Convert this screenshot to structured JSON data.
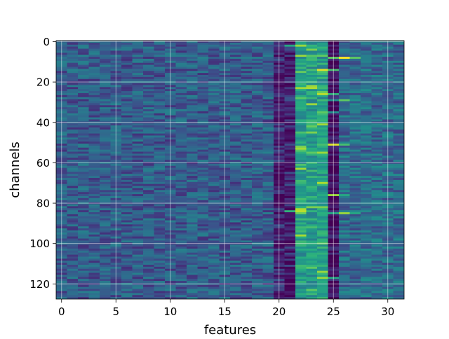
{
  "chart_data": {
    "type": "heatmap",
    "title": "",
    "xlabel": "features",
    "ylabel": "channels",
    "x_range": [
      -0.5,
      31.5
    ],
    "y_range": [
      127.5,
      -0.5
    ],
    "y_inverted": true,
    "x_ticks": [
      0,
      5,
      10,
      15,
      20,
      25,
      30
    ],
    "y_ticks": [
      0,
      20,
      40,
      60,
      80,
      100,
      120
    ],
    "grid": true,
    "colormap": "viridis",
    "n_rows": 128,
    "n_cols": 32,
    "features": [
      {
        "label": "0-19",
        "from": 0,
        "to": 19,
        "typical_intensity": 0.3
      },
      {
        "label": "20-21",
        "from": 20,
        "to": 21,
        "typical_intensity": 0.12
      },
      {
        "label": "22-24",
        "from": 22,
        "to": 24,
        "typical_intensity": 0.55
      },
      {
        "label": "25",
        "from": 25,
        "to": 25,
        "typical_intensity": 0.05
      },
      {
        "label": "26-31",
        "from": 26,
        "to": 31,
        "typical_intensity": 0.35
      }
    ],
    "hotspots": [
      {
        "channel": 2,
        "feature": 22,
        "value": 0.85
      },
      {
        "channel": 4,
        "feature": 23,
        "value": 0.8
      },
      {
        "channel": 8,
        "feature": 26,
        "value": 1.0
      },
      {
        "channel": 14,
        "feature": 24,
        "value": 0.95
      },
      {
        "channel": 22,
        "feature": 23,
        "value": 0.85
      },
      {
        "channel": 26,
        "feature": 24,
        "value": 0.9
      },
      {
        "channel": 29,
        "feature": 26,
        "value": 0.75
      },
      {
        "channel": 31,
        "feature": 23,
        "value": 0.85
      },
      {
        "channel": 35,
        "feature": 24,
        "value": 0.75
      },
      {
        "channel": 45,
        "feature": 23,
        "value": 0.8
      },
      {
        "channel": 51,
        "feature": 25,
        "value": 0.95
      },
      {
        "channel": 55,
        "feature": 23,
        "value": 0.75
      },
      {
        "channel": 64,
        "feature": 23,
        "value": 0.7
      },
      {
        "channel": 76,
        "feature": 25,
        "value": 0.85
      },
      {
        "channel": 82,
        "feature": 23,
        "value": 0.8
      },
      {
        "channel": 84,
        "feature": 22,
        "value": 0.9
      },
      {
        "channel": 85,
        "feature": 26,
        "value": 0.85
      },
      {
        "channel": 92,
        "feature": 23,
        "value": 0.7
      },
      {
        "channel": 112,
        "feature": 23,
        "value": 0.75
      },
      {
        "channel": 117,
        "feature": 24,
        "value": 0.85
      },
      {
        "channel": 123,
        "feature": 23,
        "value": 0.75
      }
    ]
  }
}
